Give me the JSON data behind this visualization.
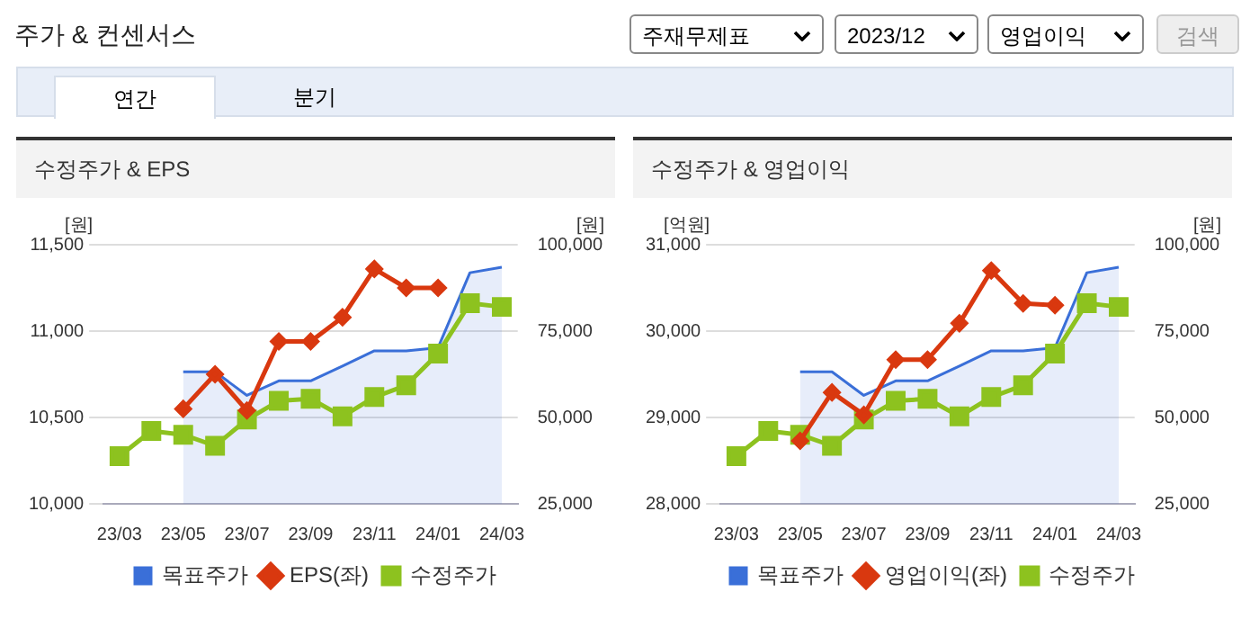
{
  "chart_data": [
    {
      "type": "other",
      "title": "주가 & 컨센서스",
      "annotations": [
        "주재무제표",
        "2023/12",
        "영업이익",
        "검색",
        "연간",
        "분기"
      ]
    },
    {
      "type": "line",
      "title": "수정주가 & EPS",
      "ylabel": "[원]",
      "y2label": "[원]",
      "categories": [
        "23/03",
        null,
        "23/05",
        null,
        "23/07",
        null,
        "23/09",
        null,
        "23/11",
        null,
        "24/01",
        null,
        "24/03"
      ],
      "series": [
        {
          "name": "목표주가",
          "type": "area",
          "axis": "y2",
          "color": "#3a6fd8",
          "marker": "none",
          "values": [
            null,
            null,
            63200,
            63200,
            56400,
            60600,
            60600,
            64900,
            69300,
            69300,
            70200,
            91900,
            93500
          ]
        },
        {
          "name": "EPS(좌)",
          "type": "line",
          "axis": "y",
          "color": "#d9380f",
          "marker": "diamond",
          "values": [
            null,
            null,
            10550,
            10750,
            10540,
            10940,
            10940,
            11080,
            11360,
            11250,
            11250,
            null,
            null
          ]
        },
        {
          "name": "수정주가",
          "type": "line",
          "axis": "y2",
          "color": "#8dc21f",
          "marker": "square",
          "values": [
            38800,
            46100,
            45000,
            41800,
            49400,
            54800,
            55400,
            50300,
            55900,
            59300,
            68500,
            83100,
            82000
          ]
        }
      ],
      "ylim": [
        10000,
        11500
      ],
      "yticks": [
        {
          "value": 10000,
          "label": "10,000"
        },
        {
          "value": 10500,
          "label": "10,500"
        },
        {
          "value": 11000,
          "label": "11,000"
        },
        {
          "value": 11500,
          "label": "11,500"
        }
      ],
      "y2lim": [
        25000,
        100000
      ],
      "y2ticks": [
        {
          "value": 25000,
          "label": "25,000"
        },
        {
          "value": 50000,
          "label": "50,000"
        },
        {
          "value": 75000,
          "label": "75,000"
        },
        {
          "value": 100000,
          "label": "100,000"
        }
      ],
      "grid": "y",
      "legend": "bottom"
    },
    {
      "type": "line",
      "title": "수정주가 & 영업이익",
      "ylabel": "[억원]",
      "y2label": "[원]",
      "categories": [
        "23/03",
        null,
        "23/05",
        null,
        "23/07",
        null,
        "23/09",
        null,
        "23/11",
        null,
        "24/01",
        null,
        "24/03"
      ],
      "series": [
        {
          "name": "목표주가",
          "type": "area",
          "axis": "y2",
          "color": "#3a6fd8",
          "marker": "none",
          "values": [
            null,
            null,
            63200,
            63200,
            56400,
            60600,
            60600,
            64900,
            69300,
            69300,
            70200,
            91900,
            93500
          ]
        },
        {
          "name": "영업이익(좌)",
          "type": "line",
          "axis": "y",
          "color": "#d9380f",
          "marker": "diamond",
          "values": [
            null,
            null,
            28730,
            29290,
            29030,
            29670,
            29670,
            30090,
            30700,
            30320,
            30300,
            null,
            null
          ]
        },
        {
          "name": "수정주가",
          "type": "line",
          "axis": "y2",
          "color": "#8dc21f",
          "marker": "square",
          "values": [
            38800,
            46100,
            45000,
            41800,
            49400,
            54800,
            55400,
            50300,
            55900,
            59300,
            68500,
            83100,
            82000
          ]
        }
      ],
      "ylim": [
        28000,
        31000
      ],
      "yticks": [
        {
          "value": 28000,
          "label": "28,000"
        },
        {
          "value": 29000,
          "label": "29,000"
        },
        {
          "value": 30000,
          "label": "30,000"
        },
        {
          "value": 31000,
          "label": "31,000"
        }
      ],
      "y2lim": [
        25000,
        100000
      ],
      "y2ticks": [
        {
          "value": 25000,
          "label": "25,000"
        },
        {
          "value": 50000,
          "label": "50,000"
        },
        {
          "value": 75000,
          "label": "75,000"
        },
        {
          "value": 100000,
          "label": "100,000"
        }
      ],
      "grid": "y",
      "legend": "bottom"
    }
  ]
}
